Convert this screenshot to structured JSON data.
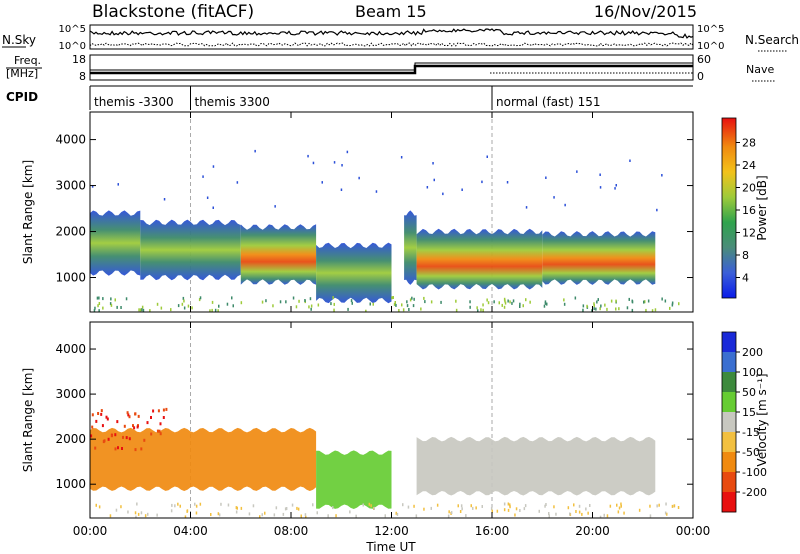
{
  "header": {
    "station": "Blackstone (fitACF)",
    "beam": "Beam 15",
    "date": "16/Nov/2015"
  },
  "sky_panel": {
    "left_label": "N.Sky",
    "right_label": "N.Search",
    "left_ticks": [
      "10^5",
      "10^0"
    ],
    "right_ticks": [
      "10^5",
      "10^0"
    ]
  },
  "freq_panel": {
    "left_label_line1": "Freq.",
    "left_label_line2": "[MHz]",
    "right_label": "Nave",
    "left_ticks": [
      "18",
      "8"
    ],
    "right_ticks": [
      "60",
      "0"
    ]
  },
  "cpid_panel": {
    "label": "CPID",
    "segments": [
      {
        "start_hour": 0,
        "end_hour": 4,
        "name": "themis -3300"
      },
      {
        "start_hour": 4,
        "end_hour": 16,
        "name": "themis 3300"
      },
      {
        "start_hour": 16,
        "end_hour": 24,
        "name": "normal (fast) 151"
      }
    ]
  },
  "chart_data": [
    {
      "type": "heatmap",
      "panel": "power",
      "ylabel": "Slant Range [km]",
      "ylim": [
        250,
        4600
      ],
      "yticks": [
        "1000",
        "2000",
        "3000",
        "4000"
      ],
      "xlim": [
        0,
        24
      ],
      "colorbar_label": "Power [dB]",
      "colorbar_ticks": [
        "4",
        "8",
        "12",
        "16",
        "20",
        "24",
        "28"
      ],
      "colorbar_colors": [
        "#0a1be8",
        "#3b5fd8",
        "#4a8c7a",
        "#2fa34d",
        "#9ecb3a",
        "#f2c21a",
        "#f08a10",
        "#e84a10",
        "#e81010"
      ],
      "bands": [
        {
          "t0": 0.0,
          "t1": 2.0,
          "r_low": 1100,
          "r_high": 2400
        },
        {
          "t0": 2.0,
          "t1": 6.0,
          "r_low": 1000,
          "r_high": 2200
        },
        {
          "t0": 6.0,
          "t1": 9.0,
          "r_low": 900,
          "r_high": 2100
        },
        {
          "t0": 9.0,
          "t1": 12.0,
          "r_low": 500,
          "r_high": 1700
        },
        {
          "t0": 12.5,
          "t1": 13.0,
          "r_low": 900,
          "r_high": 2400
        },
        {
          "t0": 13.0,
          "t1": 18.0,
          "r_low": 800,
          "r_high": 2000
        },
        {
          "t0": 18.0,
          "t1": 22.5,
          "r_low": 900,
          "r_high": 1950
        }
      ]
    },
    {
      "type": "heatmap",
      "panel": "velocity",
      "ylabel": "Slant Range [km]",
      "ylim": [
        250,
        4600
      ],
      "yticks": [
        "1000",
        "2000",
        "3000",
        "4000"
      ],
      "xlim": [
        0,
        24
      ],
      "xticks": [
        "00:00",
        "04:00",
        "08:00",
        "12:00",
        "16:00",
        "20:00",
        "00:00"
      ],
      "xlabel": "Time UT",
      "colorbar_label": "Velocity [m s⁻¹]",
      "colorbar_ticks": [
        "200",
        "100",
        "50",
        "15",
        "-15",
        "-50",
        "-100",
        "-200"
      ],
      "colorbar_colors": [
        "#1a2ad8",
        "#3b6fd0",
        "#3d8a3d",
        "#66cc33",
        "#c8c8c0",
        "#f2c040",
        "#f08a10",
        "#e84a10",
        "#e81010"
      ],
      "bands": [
        {
          "t0": 0.0,
          "t1": 9.0,
          "r_low": 900,
          "r_high": 2200
        },
        {
          "t0": 9.0,
          "t1": 12.0,
          "r_low": 500,
          "r_high": 1700
        },
        {
          "t0": 13.0,
          "t1": 22.5,
          "r_low": 800,
          "r_high": 2000
        }
      ]
    }
  ]
}
